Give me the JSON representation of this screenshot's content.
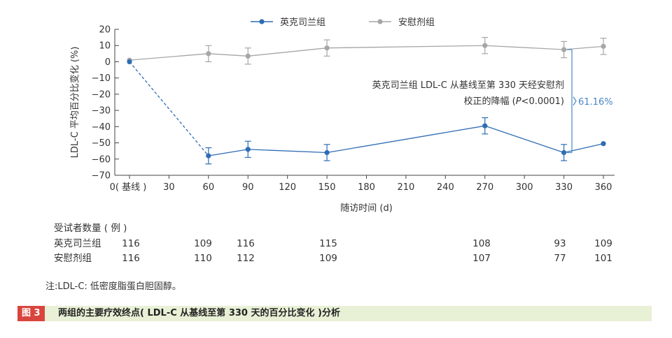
{
  "chart_data": {
    "type": "line",
    "xlabel": "随访时间 (d)",
    "ylabel": "LDL-C 平均百分比变化 (%)",
    "xticks": [
      0,
      30,
      60,
      90,
      120,
      150,
      180,
      210,
      240,
      270,
      300,
      330,
      360
    ],
    "xtick_labels": [
      "0( 基线 )",
      "30",
      "60",
      "90",
      "120",
      "150",
      "180",
      "210",
      "240",
      "270",
      "300",
      "330",
      "360"
    ],
    "xlim": [
      0,
      360
    ],
    "yticks": [
      20,
      10,
      0,
      -10,
      -20,
      -30,
      -40,
      -50,
      -60,
      -70
    ],
    "ylim": [
      -70,
      20
    ],
    "legend_position": "top",
    "series": [
      {
        "name": "英克司兰组",
        "color": "#2e6db4",
        "x": [
          0,
          60,
          90,
          150,
          270,
          330,
          360
        ],
        "y": [
          0,
          -58,
          -54,
          -56,
          -39.5,
          -56,
          -50.5
        ],
        "err": [
          0,
          5,
          5,
          5,
          5,
          5,
          0
        ]
      },
      {
        "name": "安慰剂组",
        "color": "#a6a6a6",
        "x": [
          0,
          60,
          90,
          150,
          270,
          330,
          360
        ],
        "y": [
          1,
          5,
          3.5,
          8.5,
          10,
          7.5,
          9.5
        ],
        "err": [
          0,
          5,
          5,
          5,
          5,
          5,
          5
        ]
      }
    ],
    "annotation": {
      "line1": "英克司兰组 LDL-C 从基线至第 330 天经安慰剂",
      "line2_prefix": "校正的降幅 (",
      "line2_italic": "P",
      "line2_suffix": "<0.0001)",
      "value": "61.16%"
    }
  },
  "table": {
    "title": "受试者数量 ( 例 )",
    "days": [
      0,
      60,
      90,
      150,
      270,
      330,
      360
    ],
    "rows": [
      {
        "label": "英克司兰组",
        "values": [
          "116",
          "109",
          "116",
          "115",
          "108",
          "93",
          "109"
        ]
      },
      {
        "label": "安慰剂组",
        "values": [
          "116",
          "110",
          "112",
          "109",
          "107",
          "77",
          "101"
        ]
      }
    ]
  },
  "note": "注:LDL-C: 低密度脂蛋白胆固醇。",
  "figure": {
    "tag": "图 3",
    "title": "两组的主要疗效终点( LDL-C 从基线至第 330 天的百分比变化 )分析"
  }
}
